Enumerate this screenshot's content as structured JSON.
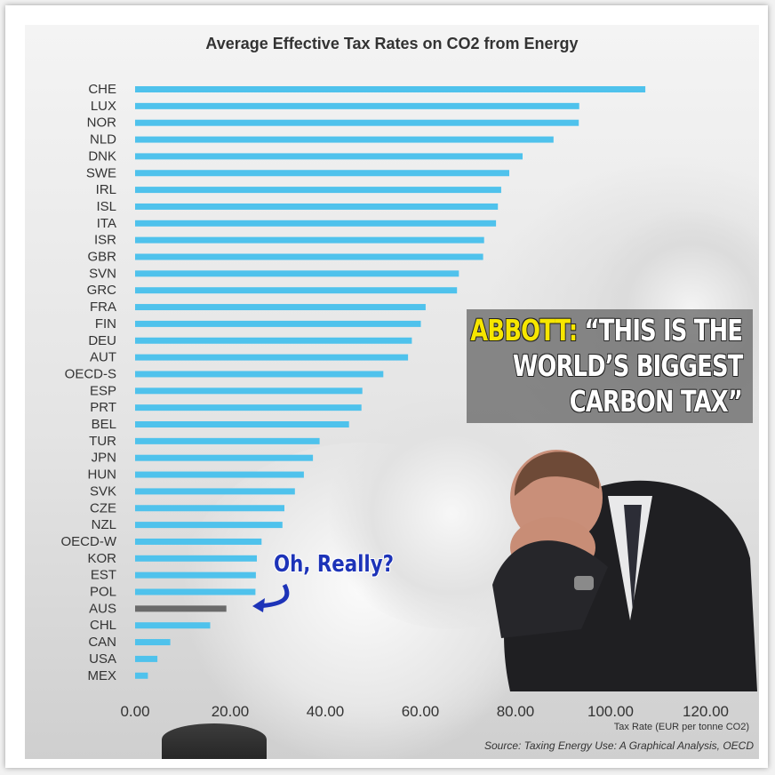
{
  "chart_data": {
    "type": "bar",
    "orientation": "horizontal",
    "title": "Average Effective Tax Rates on CO2 from Energy",
    "xlabel": "Tax Rate (EUR per tonne CO2)",
    "source": "Source: Taxing Energy Use: A Graphical Analysis, OECD",
    "xlim": [
      0,
      120
    ],
    "xticks": [
      "0.00",
      "20.00",
      "40.00",
      "60.00",
      "80.00",
      "100.00",
      "120.00"
    ],
    "grid": false,
    "categories": [
      "CHE",
      "LUX",
      "NOR",
      "NLD",
      "DNK",
      "SWE",
      "IRL",
      "ISL",
      "ITA",
      "ISR",
      "GBR",
      "SVN",
      "GRC",
      "FRA",
      "FIN",
      "DEU",
      "AUT",
      "OECD-S",
      "ESP",
      "PRT",
      "BEL",
      "TUR",
      "JPN",
      "HUN",
      "SVK",
      "CZE",
      "NZL",
      "OECD-W",
      "KOR",
      "EST",
      "POL",
      "AUS",
      "CHL",
      "CAN",
      "USA",
      "MEX"
    ],
    "values": [
      107.3,
      93.4,
      93.3,
      88.0,
      81.5,
      78.7,
      77.0,
      76.3,
      75.9,
      73.4,
      73.2,
      68.1,
      67.7,
      61.1,
      60.1,
      58.2,
      57.4,
      52.2,
      47.8,
      47.6,
      45.0,
      38.8,
      37.4,
      35.5,
      33.6,
      31.4,
      31.0,
      26.6,
      25.6,
      25.4,
      25.3,
      19.2,
      15.8,
      7.4,
      4.7,
      2.7
    ],
    "highlight": "AUS",
    "colors": {
      "bar": "#4fc2ec",
      "highlight": "#6a6a6a"
    }
  },
  "quote": {
    "speaker": "ABBOTT:",
    "line1": "“THIS IS THE",
    "line2": "WORLD’S BIGGEST",
    "line3": "CARBON TAX”"
  },
  "callout": {
    "text": "Oh, Really?",
    "target": "AUS"
  },
  "colors": {
    "quote_speaker": "#f7e600",
    "callout": "#1d33b8"
  }
}
